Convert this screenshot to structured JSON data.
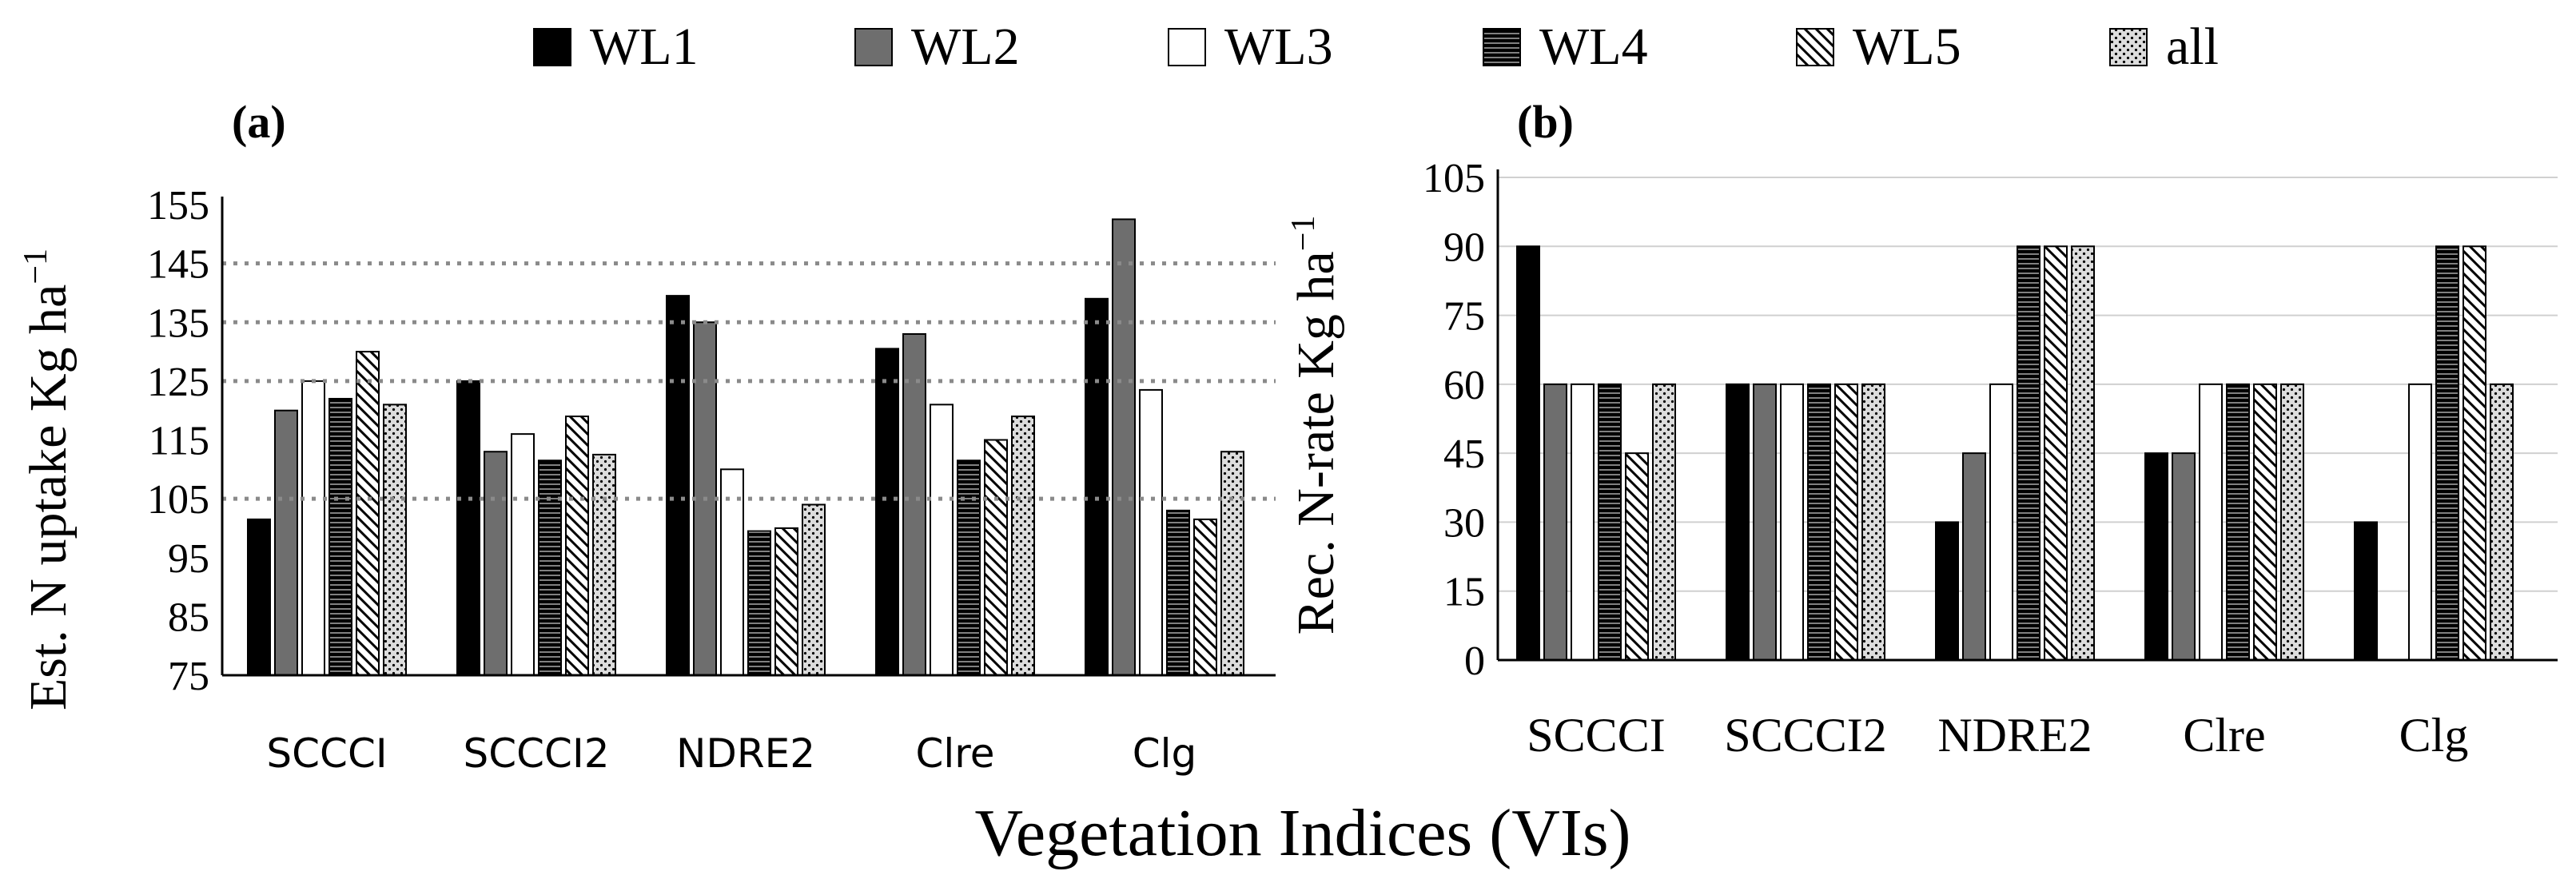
{
  "legend": [
    {
      "name": "WL1",
      "pattern": "solid-black"
    },
    {
      "name": "WL2",
      "pattern": "solid-gray"
    },
    {
      "name": "WL3",
      "pattern": "white"
    },
    {
      "name": "WL4",
      "pattern": "horizontal-lines"
    },
    {
      "name": "WL5",
      "pattern": "diagonal-lines"
    },
    {
      "name": "all",
      "pattern": "dots"
    }
  ],
  "colors": {
    "wl1": "#000000",
    "wl2": "#6e6e6e",
    "wl3": "#ffffff",
    "axis": "#000000",
    "grid": "#d0d0d0",
    "dotted_line": "#8a8a8a",
    "dots_bg": "#dcdcdc"
  },
  "common_xlabel": "Vegetation Indices (VIs)",
  "chart_data": [
    {
      "type": "bar",
      "panel_label": "(a)",
      "title": "",
      "ylabel": "Est. N uptake Kg ha",
      "ylabel_sup": "−1",
      "xlabel": "",
      "ylim": [
        75,
        155
      ],
      "yticks": [
        75,
        85,
        95,
        105,
        115,
        125,
        135,
        145,
        155
      ],
      "grid": false,
      "reference_lines": [
        105,
        125,
        135,
        145
      ],
      "categories": [
        "SCCCI",
        "SCCCI2",
        "NDRE2",
        "Clre",
        "Clg"
      ],
      "category_font": "sans",
      "series": [
        {
          "name": "WL1",
          "values": [
            101.5,
            125,
            139.5,
            130.5,
            139
          ]
        },
        {
          "name": "WL2",
          "values": [
            120,
            113,
            135,
            133,
            152.5
          ]
        },
        {
          "name": "WL3",
          "values": [
            125,
            116,
            110,
            121,
            123.5
          ]
        },
        {
          "name": "WL4",
          "values": [
            122,
            111.5,
            99.5,
            111.5,
            103
          ]
        },
        {
          "name": "WL5",
          "values": [
            130,
            119,
            100,
            115,
            101.5
          ]
        },
        {
          "name": "all",
          "values": [
            121,
            112.5,
            104,
            119,
            113
          ]
        }
      ]
    },
    {
      "type": "bar",
      "panel_label": "(b)",
      "title": "",
      "ylabel": "Rec.  N-rate  Kg ha",
      "ylabel_sup": "−1",
      "xlabel": "",
      "ylim": [
        0,
        105
      ],
      "yticks": [
        0,
        15,
        30,
        45,
        60,
        75,
        90,
        105
      ],
      "grid": true,
      "reference_lines": [],
      "categories": [
        "SCCCI",
        "SCCCI2",
        "NDRE2",
        "Clre",
        "Clg"
      ],
      "category_font": "serif",
      "series": [
        {
          "name": "WL1",
          "values": [
            90,
            60,
            30,
            45,
            30
          ]
        },
        {
          "name": "WL2",
          "values": [
            60,
            60,
            45,
            45,
            0
          ]
        },
        {
          "name": "WL3",
          "values": [
            60,
            60,
            60,
            60,
            60
          ]
        },
        {
          "name": "WL4",
          "values": [
            60,
            60,
            90,
            60,
            90
          ]
        },
        {
          "name": "WL5",
          "values": [
            45,
            60,
            90,
            60,
            90
          ]
        },
        {
          "name": "all",
          "values": [
            60,
            60,
            90,
            60,
            60
          ]
        }
      ]
    }
  ]
}
